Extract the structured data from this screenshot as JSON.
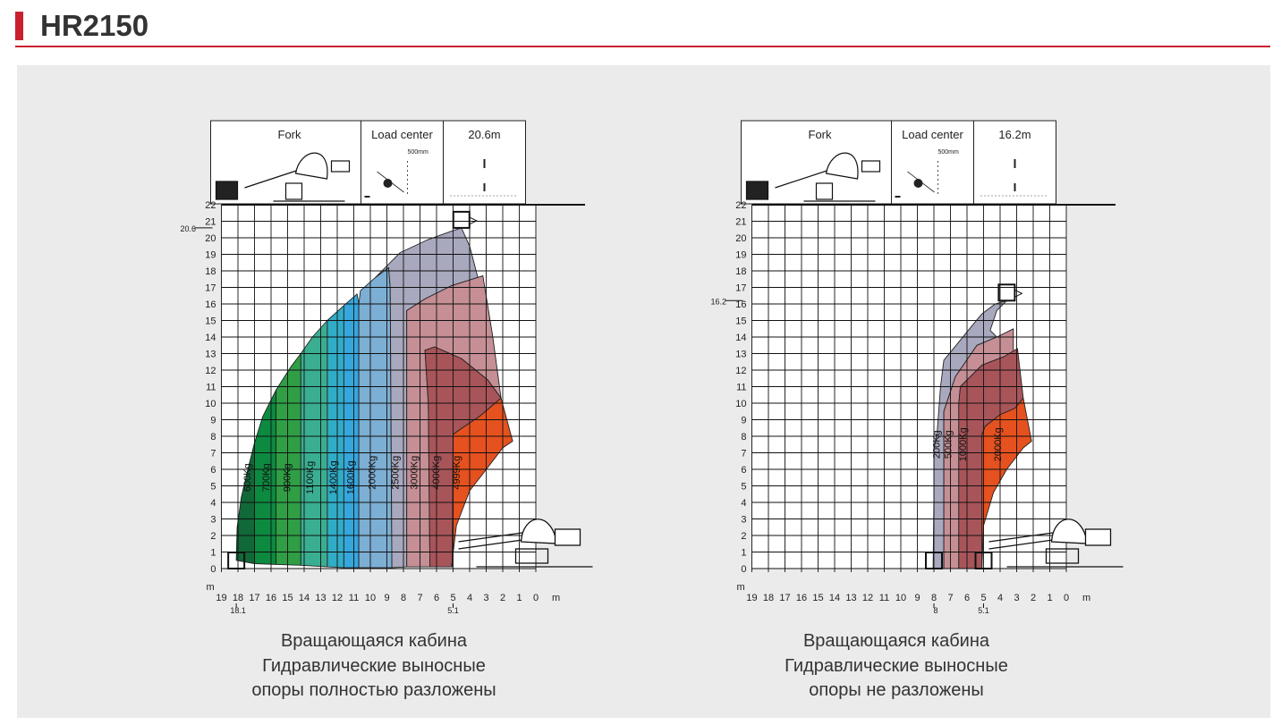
{
  "page": {
    "title": "HR2150"
  },
  "chart_data": [
    {
      "type": "area",
      "chart_name": "load-chart-outriggers-deployed",
      "header": {
        "col1": "Fork",
        "col2": "Load center",
        "load_center_value": "500mm",
        "col3": "20.6m"
      },
      "x_axis_unit": "m",
      "y_axis_unit": "m",
      "x_ticks": [
        "19",
        "18",
        "17",
        "16",
        "15",
        "14",
        "13",
        "12",
        "11",
        "10",
        "9",
        "8",
        "7",
        "6",
        "5",
        "4",
        "3",
        "2",
        "1",
        "0"
      ],
      "y_ticks": [
        "0",
        "1",
        "2",
        "3",
        "4",
        "5",
        "6",
        "7",
        "8",
        "9",
        "10",
        "11",
        "12",
        "13",
        "14",
        "15",
        "16",
        "17",
        "18",
        "19",
        "20",
        "21",
        "22"
      ],
      "xlim": [
        19,
        0
      ],
      "ylim": [
        0,
        22
      ],
      "max_height_label": "20.6",
      "max_reach_label": "18.1",
      "min_reach_label": "5.1",
      "series": [
        {
          "name": "600Kg",
          "color": "#116838"
        },
        {
          "name": "700Kg",
          "color": "#0c8a40"
        },
        {
          "name": "900Kg",
          "color": "#2f9e45"
        },
        {
          "name": "1100Kg",
          "color": "#3aae91"
        },
        {
          "name": "1400Kg",
          "color": "#31acc6"
        },
        {
          "name": "1600Kg",
          "color": "#36a6dd"
        },
        {
          "name": "2000Kg",
          "color": "#7daed3"
        },
        {
          "name": "2500Kg",
          "color": "#a8a8be"
        },
        {
          "name": "3000Kg",
          "color": "#c58f95"
        },
        {
          "name": "4000Kg",
          "color": "#a8555a"
        },
        {
          "name": "4999Kg",
          "color": "#e5511f"
        }
      ],
      "caption": [
        "Вращающаяся кабина",
        "Гидравлические выносные",
        "опоры полностью разложены"
      ]
    },
    {
      "type": "area",
      "chart_name": "load-chart-outriggers-retracted",
      "header": {
        "col1": "Fork",
        "col2": "Load center",
        "load_center_value": "500mm",
        "col3": "16.2m"
      },
      "x_axis_unit": "m",
      "y_axis_unit": "m",
      "x_ticks": [
        "19",
        "18",
        "17",
        "16",
        "15",
        "14",
        "13",
        "12",
        "11",
        "10",
        "9",
        "8",
        "7",
        "6",
        "5",
        "4",
        "3",
        "2",
        "1",
        "0"
      ],
      "y_ticks": [
        "0",
        "1",
        "2",
        "3",
        "4",
        "5",
        "6",
        "7",
        "8",
        "9",
        "10",
        "11",
        "12",
        "13",
        "14",
        "15",
        "16",
        "17",
        "18",
        "19",
        "20",
        "21",
        "22"
      ],
      "xlim": [
        19,
        0
      ],
      "ylim": [
        0,
        22
      ],
      "max_height_label": "16.2",
      "max_reach_label": "8",
      "min_reach_label": "5.1",
      "series": [
        {
          "name": "200Kg",
          "color": "#a8a8be"
        },
        {
          "name": "500Kg",
          "color": "#c58f95"
        },
        {
          "name": "1000Kg",
          "color": "#a8555a"
        },
        {
          "name": "2000Kg",
          "color": "#e5511f"
        }
      ],
      "caption": [
        "Вращающаяся кабина",
        "Гидравлические выносные",
        "опоры не разложены"
      ]
    }
  ]
}
